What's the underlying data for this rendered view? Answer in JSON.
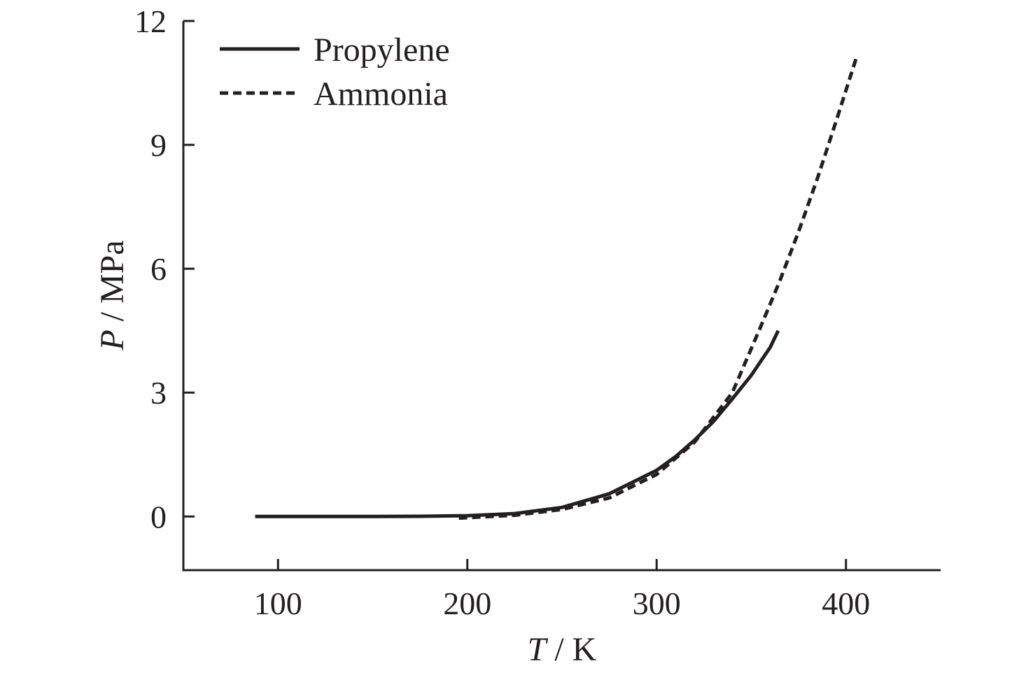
{
  "chart_data": {
    "type": "line",
    "xlabel": {
      "symbol": "T",
      "unit": " / K"
    },
    "ylabel": {
      "symbol": "P",
      "unit": " / MPa"
    },
    "xlim": [
      50,
      450
    ],
    "ylim": [
      -1.3,
      12
    ],
    "xticks": [
      "100",
      "200",
      "300",
      "400"
    ],
    "xtick_values": [
      100,
      200,
      300,
      400
    ],
    "yticks": [
      "0",
      "3",
      "6",
      "9",
      "12"
    ],
    "ytick_values": [
      0,
      3,
      6,
      9,
      12
    ],
    "grid": false,
    "legend_position": "top-left",
    "series": [
      {
        "name": "Propylene",
        "style": "solid",
        "color": "#231f20",
        "x": [
          87.9,
          100,
          125,
          150,
          175,
          200,
          225,
          250,
          275,
          300,
          310,
          320,
          330,
          340,
          350,
          360,
          364.2
        ],
        "y": [
          0.0,
          0.0,
          0.0,
          0.0,
          0.005,
          0.02,
          0.07,
          0.22,
          0.55,
          1.12,
          1.45,
          1.85,
          2.3,
          2.85,
          3.42,
          4.1,
          4.5
        ]
      },
      {
        "name": "Ammonia",
        "style": "dashed",
        "color": "#231f20",
        "x": [
          195.5,
          200,
          225,
          250,
          275,
          300,
          320,
          340,
          355,
          365,
          375,
          385,
          395,
          405.4
        ],
        "y": [
          -0.04,
          -0.03,
          0.03,
          0.17,
          0.45,
          1.02,
          1.8,
          3.0,
          4.6,
          5.7,
          6.9,
          8.2,
          9.6,
          11.1
        ]
      }
    ]
  }
}
